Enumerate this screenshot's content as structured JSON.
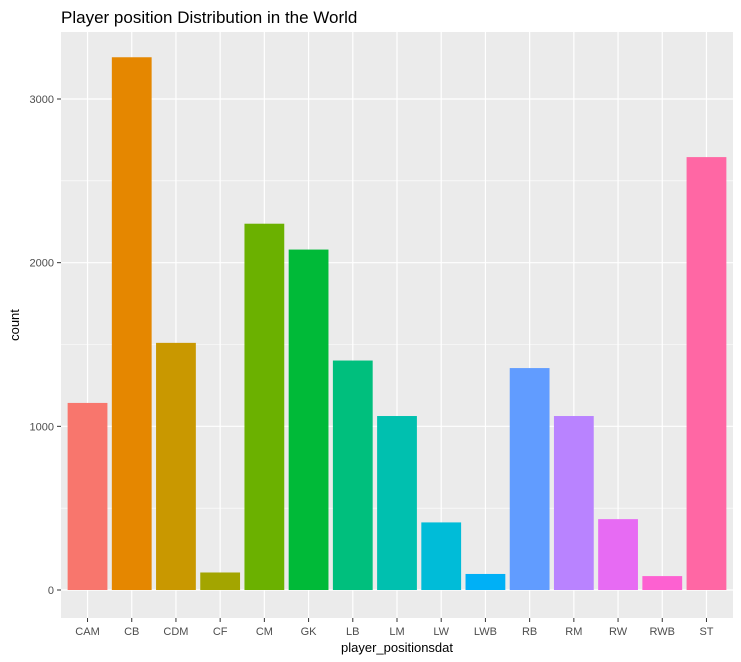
{
  "chart_data": {
    "type": "bar",
    "title": "Player position Distribution in the World",
    "xlabel": "player_positionsdat",
    "ylabel": "count",
    "categories": [
      "CAM",
      "CB",
      "CDM",
      "CF",
      "CM",
      "GK",
      "LB",
      "LM",
      "LW",
      "LWB",
      "RB",
      "RM",
      "RW",
      "RWB",
      "ST"
    ],
    "values": [
      1143,
      3255,
      1510,
      107,
      2238,
      2080,
      1402,
      1063,
      413,
      98,
      1356,
      1063,
      433,
      85,
      2645
    ],
    "colors": [
      "#F8766D",
      "#E58700",
      "#C99800",
      "#A3A500",
      "#6BB100",
      "#00BA38",
      "#00BF7D",
      "#00C0AF",
      "#00BCD8",
      "#00B0F6",
      "#619CFF",
      "#B983FF",
      "#E76BF3",
      "#FD61D1",
      "#FF67A4"
    ],
    "ylim": [
      0,
      3400
    ],
    "yticks": [
      0,
      1000,
      2000,
      3000
    ],
    "grid": true,
    "panel_background": "#EBEBEB",
    "grid_color": "#FFFFFF",
    "legend": "none"
  }
}
